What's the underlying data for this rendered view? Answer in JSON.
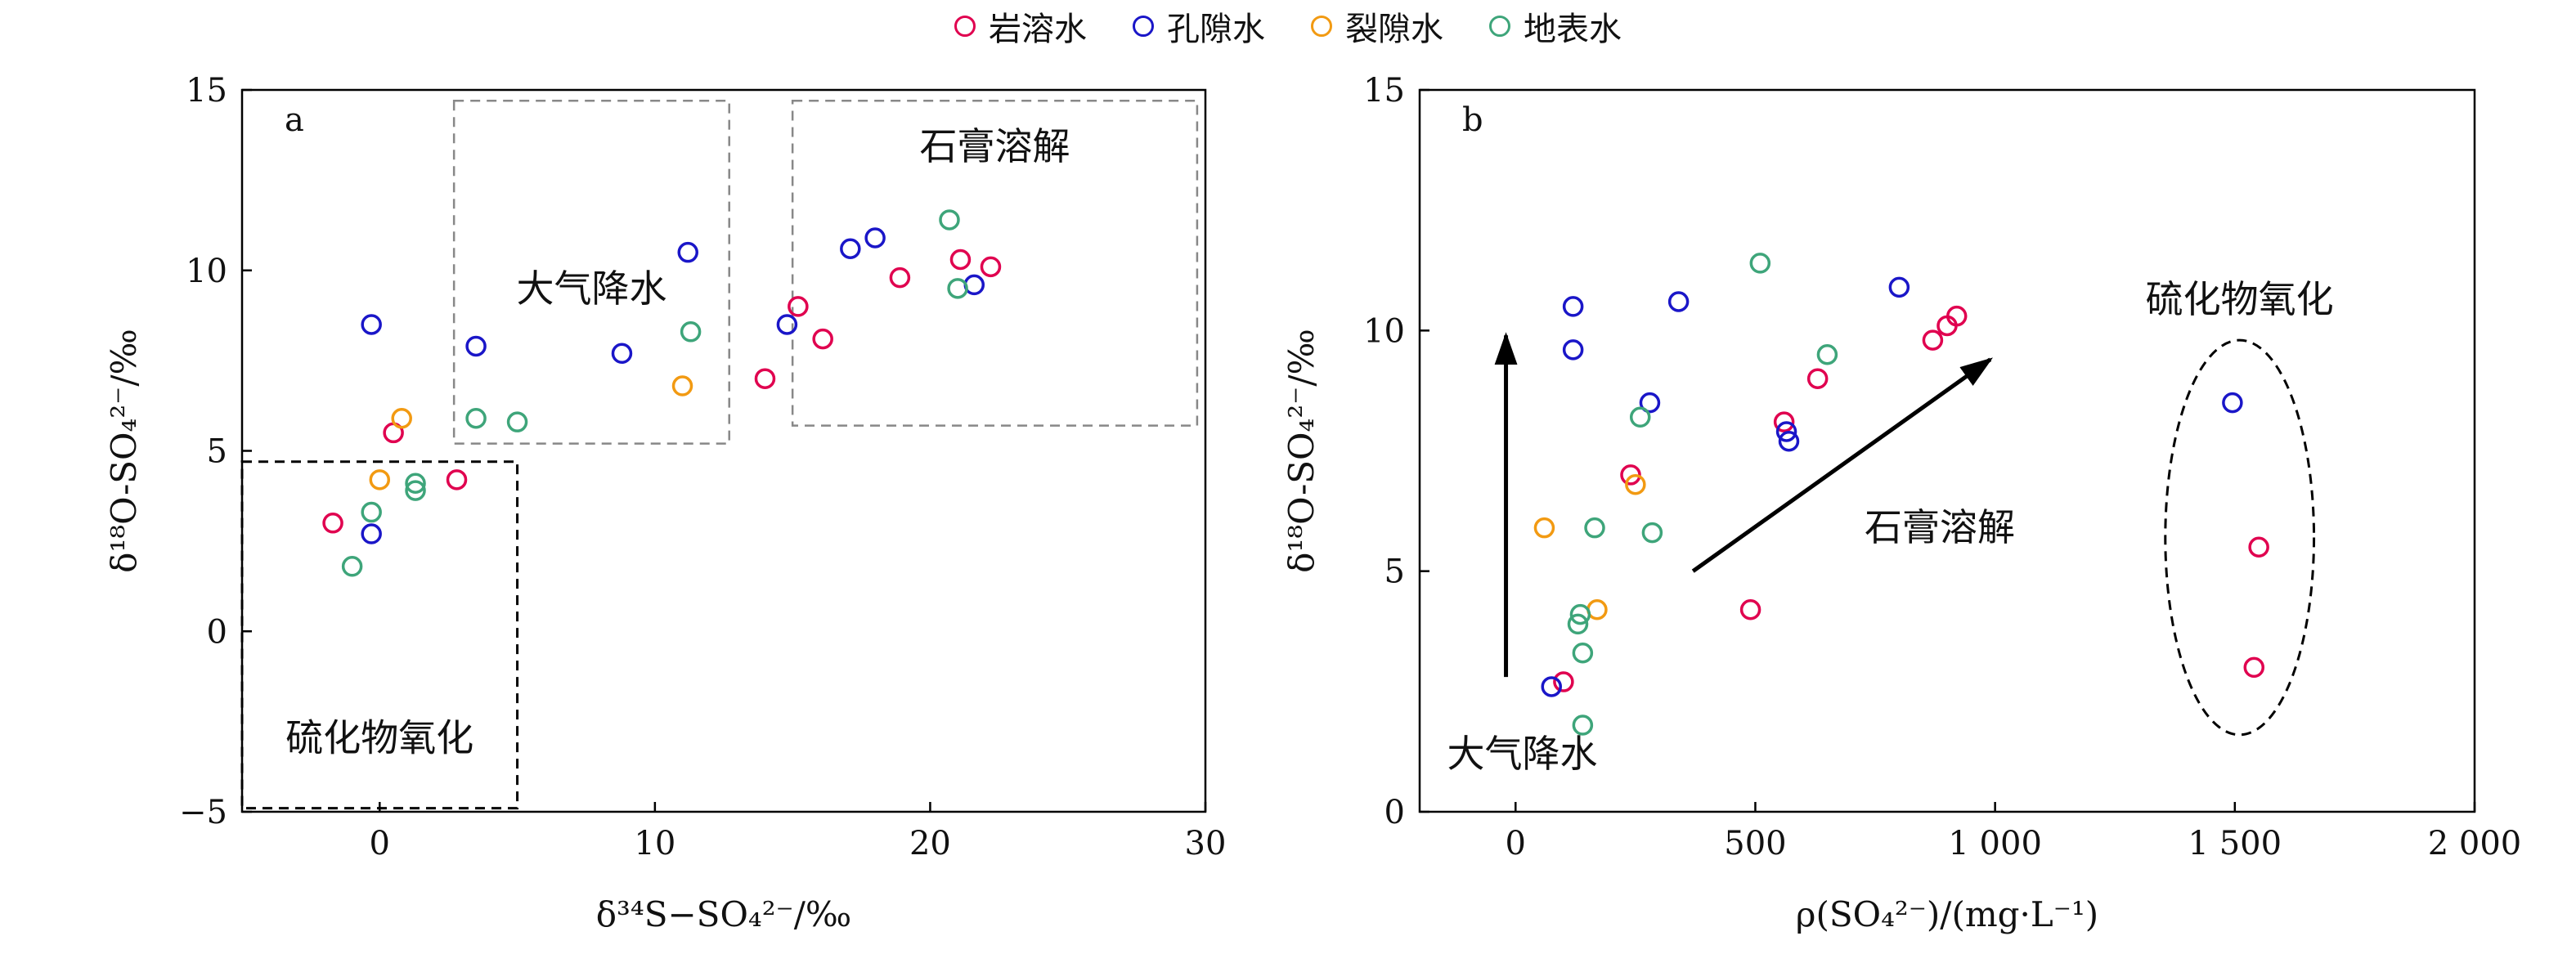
{
  "legend": [
    {
      "name": "岩溶水",
      "color": "#e0004f"
    },
    {
      "name": "孔隙水",
      "color": "#1a16c8"
    },
    {
      "name": "裂隙水",
      "color": "#f29a12"
    },
    {
      "name": "地表水",
      "color": "#3ea57a"
    }
  ],
  "chart_data": [
    {
      "type": "scatter",
      "panel_label": "a",
      "xlabel": "δ³⁴S−SO₄²⁻/‰",
      "ylabel": "δ¹⁸O-SO₄²⁻/‰",
      "xlim": [
        -5,
        30
      ],
      "ylim": [
        -5,
        15
      ],
      "xticks": [
        0,
        10,
        20,
        30
      ],
      "yticks": [
        -5,
        0,
        5,
        10,
        15
      ],
      "grid": false,
      "series": [
        {
          "name": "岩溶水",
          "x": [
            -1.7,
            0.5,
            2.8,
            14.0,
            15.2,
            16.1,
            18.9,
            21.1,
            22.2
          ],
          "y": [
            3.0,
            5.5,
            4.2,
            7.0,
            9.0,
            8.1,
            9.8,
            10.3,
            10.1
          ]
        },
        {
          "name": "孔隙水",
          "x": [
            -0.3,
            -0.3,
            3.5,
            8.8,
            11.2,
            14.8,
            17.1,
            18.0,
            21.6
          ],
          "y": [
            8.5,
            2.7,
            7.9,
            7.7,
            10.5,
            8.5,
            10.6,
            10.9,
            9.6
          ]
        },
        {
          "name": "裂隙水",
          "x": [
            0.0,
            0.8,
            11.0
          ],
          "y": [
            4.2,
            5.9,
            6.8
          ]
        },
        {
          "name": "地表水",
          "x": [
            -1.0,
            -0.3,
            1.3,
            1.3,
            3.5,
            5.0,
            11.3,
            20.7,
            21.0
          ],
          "y": [
            1.8,
            3.3,
            4.1,
            3.9,
            5.9,
            5.8,
            8.3,
            11.4,
            9.5
          ]
        }
      ],
      "regions": [
        {
          "label": "大气降水",
          "x": [
            2.7,
            12.7
          ],
          "y": [
            5.2,
            14.7
          ],
          "style": "gray-dashed"
        },
        {
          "label": "石膏溶解",
          "x": [
            15.0,
            29.7
          ],
          "y": [
            5.7,
            14.7
          ],
          "style": "gray-dashed"
        },
        {
          "label": "硫化物氧化",
          "x": [
            -5.0,
            5.0
          ],
          "y": [
            -4.9,
            4.7
          ],
          "style": "black-dashed"
        }
      ]
    },
    {
      "type": "scatter",
      "panel_label": "b",
      "xlabel": "ρ(SO₄²⁻)/(mg·L⁻¹)",
      "ylabel": "δ¹⁸O-SO₄²⁻/‰",
      "xlim": [
        -200,
        2000
      ],
      "ylim": [
        0,
        15
      ],
      "xticks": [
        0,
        500,
        1000,
        1500,
        2000
      ],
      "xtick_labels": [
        "0",
        "500",
        "1 000",
        "1 500",
        "2 000"
      ],
      "yticks": [
        0,
        5,
        10,
        15
      ],
      "grid": false,
      "series": [
        {
          "name": "岩溶水",
          "x": [
            100,
            240,
            490,
            560,
            630,
            870,
            900,
            920,
            1540,
            1550
          ],
          "y": [
            2.7,
            7.0,
            4.2,
            8.1,
            9.0,
            9.8,
            10.1,
            10.3,
            3.0,
            5.5
          ]
        },
        {
          "name": "孔隙水",
          "x": [
            75,
            120,
            120,
            280,
            340,
            565,
            570,
            800,
            1495
          ],
          "y": [
            2.6,
            10.5,
            9.6,
            8.5,
            10.6,
            7.9,
            7.7,
            10.9,
            8.5
          ]
        },
        {
          "name": "裂隙水",
          "x": [
            60,
            170,
            250
          ],
          "y": [
            5.9,
            4.2,
            6.8
          ]
        },
        {
          "name": "地表水",
          "x": [
            130,
            135,
            140,
            140,
            165,
            260,
            285,
            510,
            650
          ],
          "y": [
            3.9,
            4.1,
            3.3,
            1.8,
            5.9,
            8.2,
            5.8,
            11.4,
            9.5
          ]
        }
      ],
      "annotations": [
        {
          "label": "大气降水",
          "arrow_from": [
            -20,
            2.8
          ],
          "arrow_to": [
            -20,
            9.9
          ]
        },
        {
          "label": "石膏溶解",
          "arrow_from": [
            370,
            5.0
          ],
          "arrow_to": [
            990,
            9.4
          ]
        },
        {
          "label": "硫化物氧化",
          "ellipse_center": [
            1510,
            5.7
          ],
          "ellipse_radius": [
            155,
            4.1
          ]
        }
      ]
    }
  ]
}
